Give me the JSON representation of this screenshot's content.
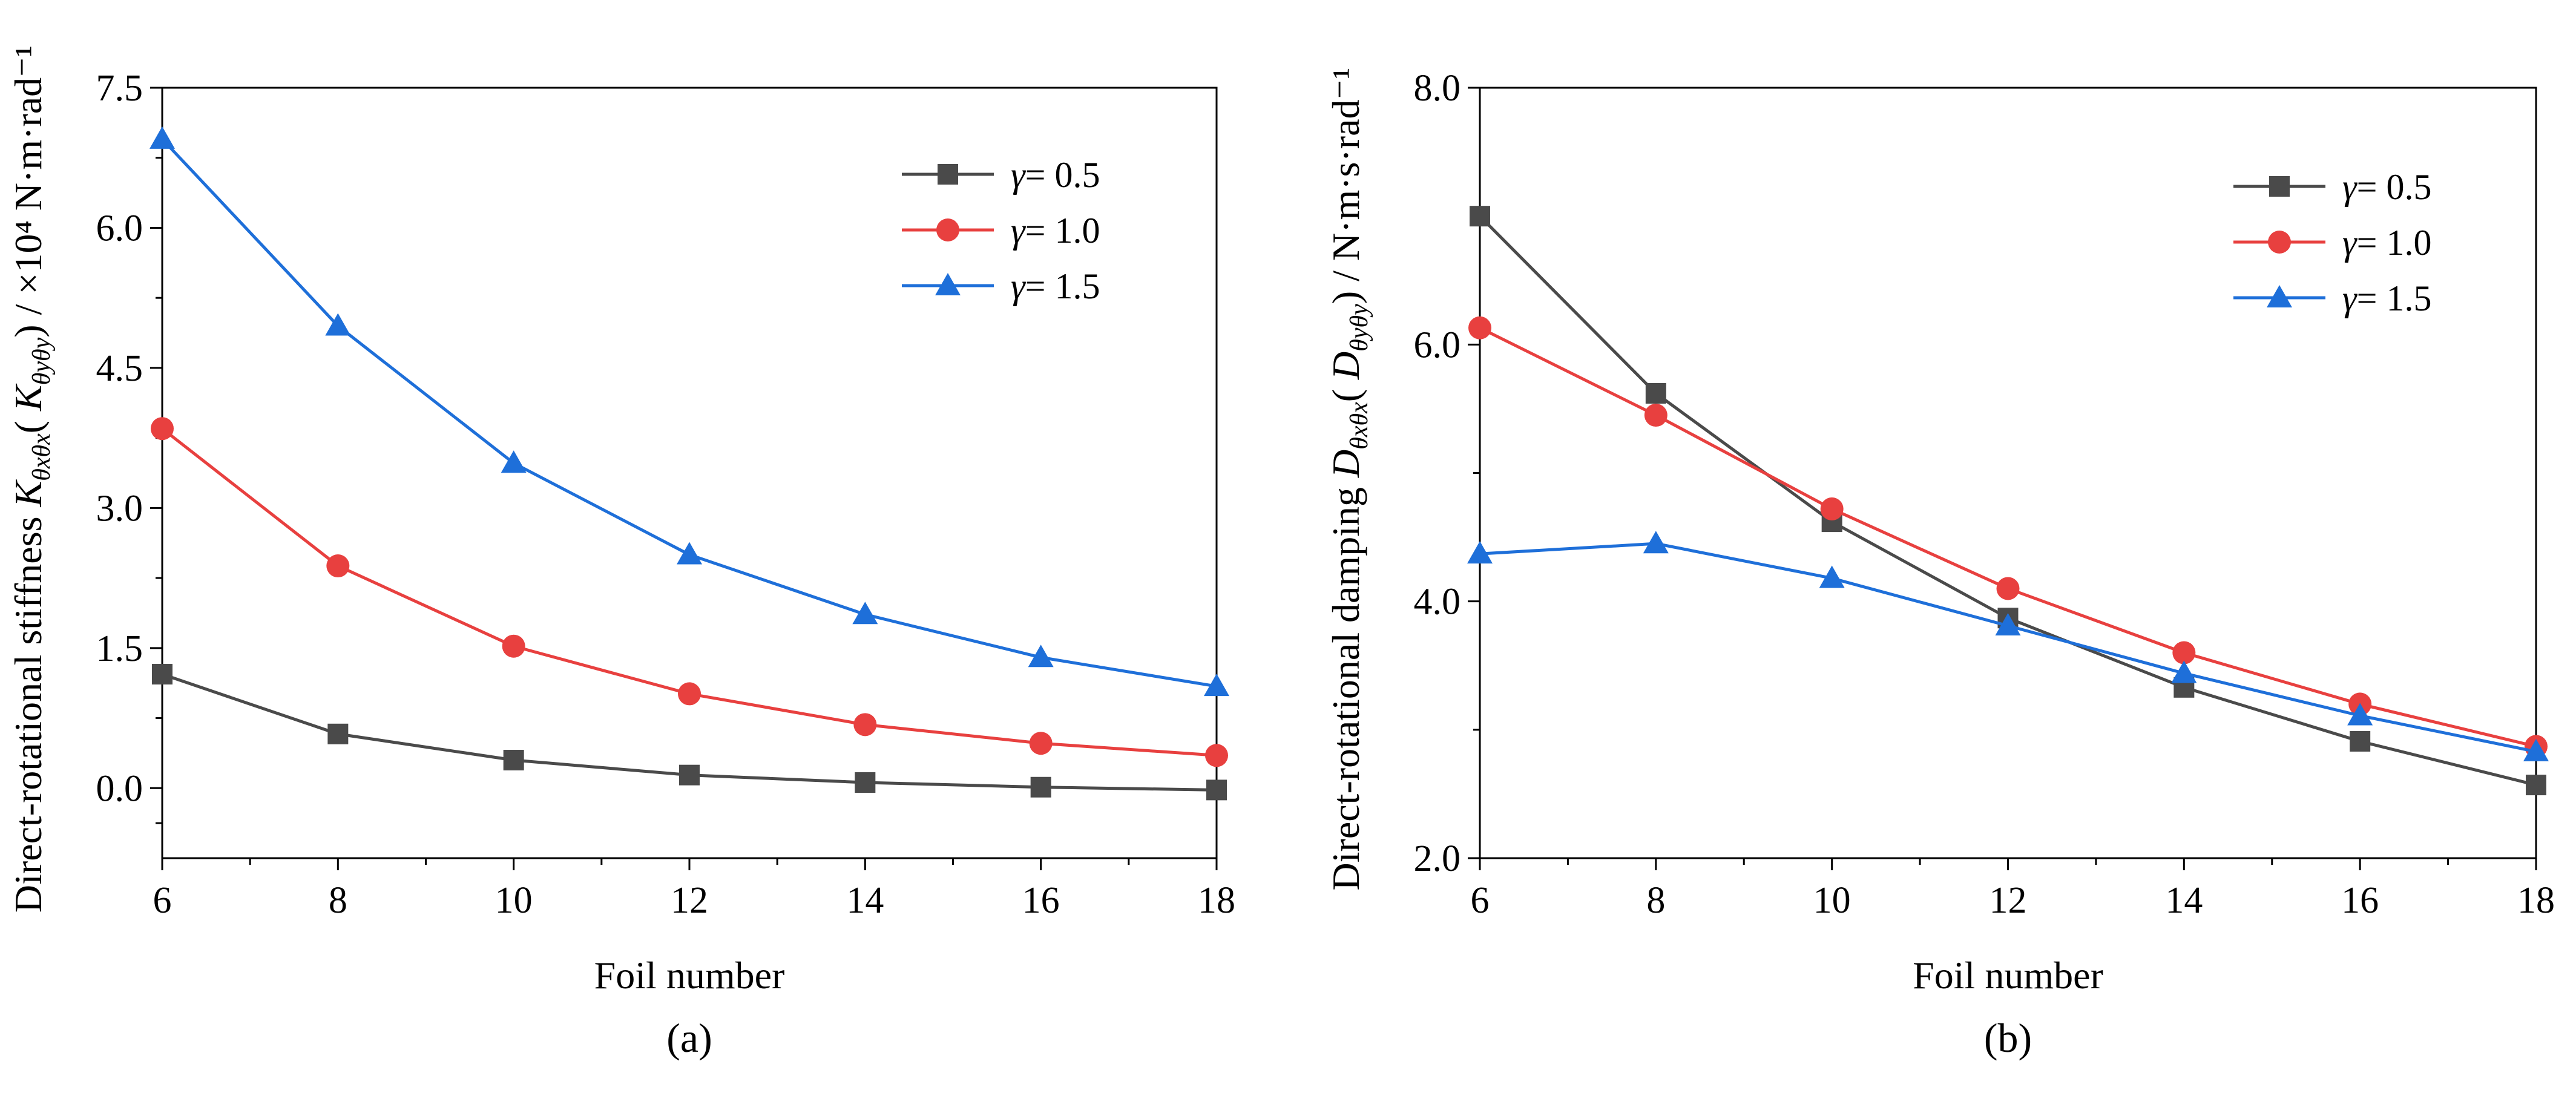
{
  "chart_data": [
    {
      "type": "line",
      "panel_label": "(a)",
      "xlabel": "Foil number",
      "ylabel_prefix": "Direct-rotational stiffness ",
      "ylabel_sym": "K",
      "ylabel_sub1": "θxθx",
      "ylabel_mid": "( ",
      "ylabel_sym2": "K",
      "ylabel_sub2": "θyθy",
      "ylabel_suffix": ") / ×10⁴ N·m·rad⁻¹",
      "x": [
        6,
        8,
        10,
        12,
        14,
        16,
        18
      ],
      "xlim": [
        6,
        18
      ],
      "ylim": [
        -0.75,
        7.5
      ],
      "xticks": [
        "6",
        "8",
        "10",
        "12",
        "14",
        "16",
        "18"
      ],
      "yticks": [
        "0.0",
        "1.5",
        "3.0",
        "4.5",
        "6.0",
        "7.5"
      ],
      "ytick_values": [
        0,
        1.5,
        3.0,
        4.5,
        6.0,
        7.5
      ],
      "legend_position": "top-right",
      "series": [
        {
          "name": "γ = 0.5",
          "greek": "γ",
          "label": "= 0.5",
          "color": "#4a4a4a",
          "marker": "square",
          "values": [
            1.22,
            0.58,
            0.3,
            0.14,
            0.06,
            0.01,
            -0.02
          ]
        },
        {
          "name": "γ = 1.0",
          "greek": "γ",
          "label": "= 1.0",
          "color": "#e8403f",
          "marker": "circle",
          "values": [
            3.85,
            2.38,
            1.52,
            1.01,
            0.68,
            0.48,
            0.35
          ]
        },
        {
          "name": "γ = 1.5",
          "greek": "γ",
          "label": "= 1.5",
          "color": "#1e6fd9",
          "marker": "triangle",
          "values": [
            6.95,
            4.95,
            3.48,
            2.5,
            1.86,
            1.4,
            1.09
          ]
        }
      ]
    },
    {
      "type": "line",
      "panel_label": "(b)",
      "xlabel": "Foil number",
      "ylabel_prefix": "Direct-rotational damping ",
      "ylabel_sym": "D",
      "ylabel_sub1": "θxθx",
      "ylabel_mid": "( ",
      "ylabel_sym2": "D",
      "ylabel_sub2": "θyθy",
      "ylabel_suffix": ") / N·m·s·rad⁻¹",
      "x": [
        6,
        8,
        10,
        12,
        14,
        16,
        18
      ],
      "xlim": [
        6,
        18
      ],
      "ylim": [
        2.0,
        8.0
      ],
      "xticks": [
        "6",
        "8",
        "10",
        "12",
        "14",
        "16",
        "18"
      ],
      "yticks": [
        "2.0",
        "4.0",
        "6.0",
        "8.0"
      ],
      "ytick_values": [
        2.0,
        4.0,
        6.0,
        8.0
      ],
      "legend_position": "top-right",
      "series": [
        {
          "name": "γ = 0.5",
          "greek": "γ",
          "label": "= 0.5",
          "color": "#4a4a4a",
          "marker": "square",
          "values": [
            7.0,
            5.62,
            4.62,
            3.87,
            3.33,
            2.91,
            2.57
          ]
        },
        {
          "name": "γ = 1.0",
          "greek": "γ",
          "label": "= 1.0",
          "color": "#e8403f",
          "marker": "circle",
          "values": [
            6.13,
            5.45,
            4.72,
            4.1,
            3.6,
            3.2,
            2.87
          ]
        },
        {
          "name": "γ = 1.5",
          "greek": "γ",
          "label": "= 1.5",
          "color": "#1e6fd9",
          "marker": "triangle",
          "values": [
            4.37,
            4.45,
            4.18,
            3.81,
            3.44,
            3.11,
            2.83
          ]
        }
      ]
    }
  ]
}
